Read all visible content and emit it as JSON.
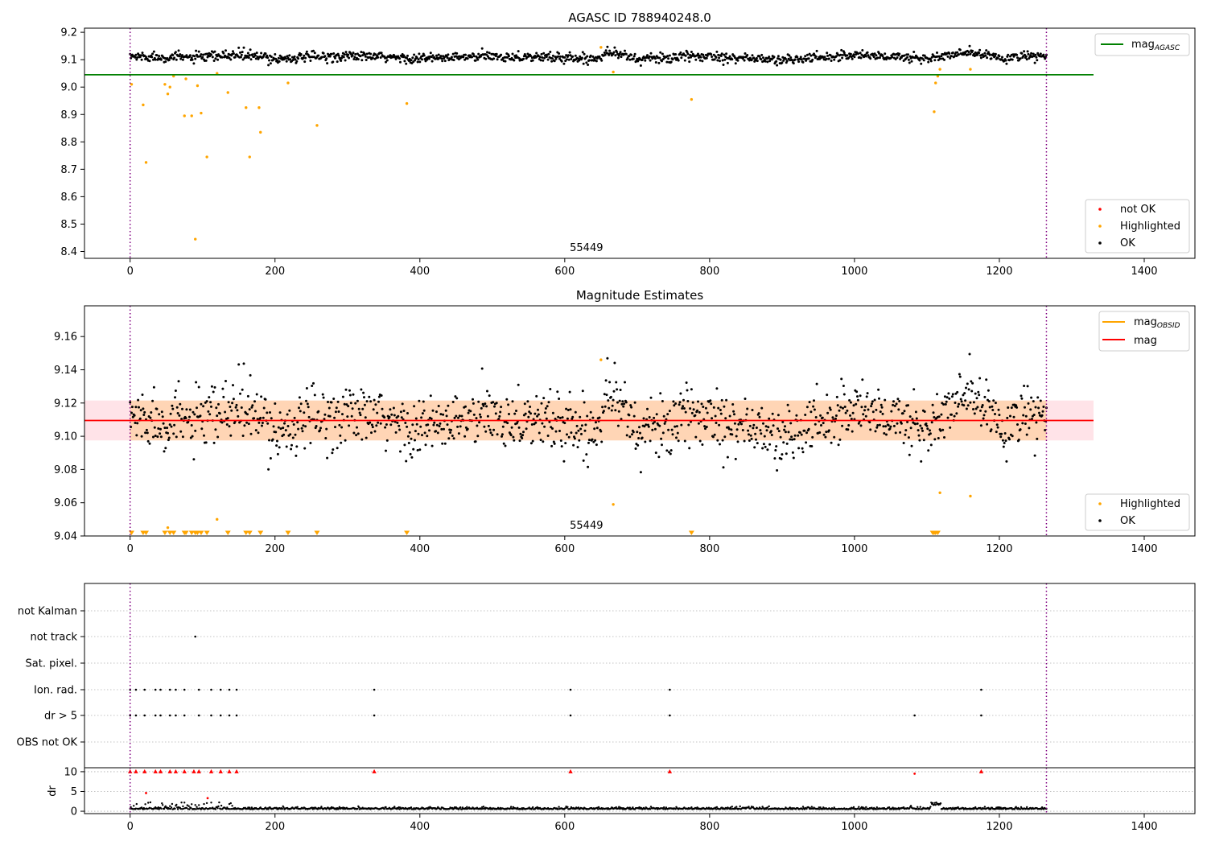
{
  "chart_data": [
    {
      "type": "scatter",
      "title": "AGASC ID 788940248.0",
      "x_range": [
        -63,
        1470
      ],
      "y_range": [
        8.375,
        9.215
      ],
      "x_ticks": [
        0,
        200,
        400,
        600,
        800,
        1000,
        1200,
        1400
      ],
      "y_ticks": [
        8.4,
        8.5,
        8.6,
        8.7,
        8.8,
        8.9,
        9.0,
        9.1,
        9.2
      ],
      "y_tick_labels": [
        "8.4",
        "8.5",
        "8.6",
        "8.7",
        "8.8",
        "8.9",
        "9.0",
        "9.1",
        "9.2"
      ],
      "obsid_label": "55449",
      "obsid_label_x": 630,
      "obs_boundaries": [
        0,
        1265
      ],
      "mag_agasc": 9.045,
      "mag_agasc_x_range": [
        -63,
        1330
      ],
      "legend_upper": [
        {
          "label": "mag",
          "sub": "AGASC",
          "color": "#008000"
        }
      ],
      "legend_lower": [
        {
          "label": "not OK",
          "color": "#ff0000"
        },
        {
          "label": "Highlighted",
          "color": "#ffa500"
        },
        {
          "label": "OK",
          "color": "#000000"
        }
      ],
      "ok_band": [
        {
          "x": 0,
          "y": 9.112
        },
        {
          "x": 100,
          "y": 9.108
        },
        {
          "x": 150,
          "y": 9.118
        },
        {
          "x": 200,
          "y": 9.104
        },
        {
          "x": 300,
          "y": 9.114
        },
        {
          "x": 400,
          "y": 9.104
        },
        {
          "x": 500,
          "y": 9.112
        },
        {
          "x": 600,
          "y": 9.108
        },
        {
          "x": 640,
          "y": 9.102
        },
        {
          "x": 660,
          "y": 9.132
        },
        {
          "x": 700,
          "y": 9.102
        },
        {
          "x": 800,
          "y": 9.114
        },
        {
          "x": 900,
          "y": 9.098
        },
        {
          "x": 1000,
          "y": 9.118
        },
        {
          "x": 1100,
          "y": 9.104
        },
        {
          "x": 1160,
          "y": 9.126
        },
        {
          "x": 1200,
          "y": 9.106
        },
        {
          "x": 1265,
          "y": 9.114
        }
      ],
      "highlighted": [
        {
          "x": 2,
          "y": 9.01
        },
        {
          "x": 18,
          "y": 8.935
        },
        {
          "x": 22,
          "y": 8.725
        },
        {
          "x": 48,
          "y": 9.01
        },
        {
          "x": 52,
          "y": 8.975
        },
        {
          "x": 55,
          "y": 9.0
        },
        {
          "x": 60,
          "y": 9.04
        },
        {
          "x": 75,
          "y": 8.895
        },
        {
          "x": 77,
          "y": 9.03
        },
        {
          "x": 85,
          "y": 8.895
        },
        {
          "x": 90,
          "y": 8.445
        },
        {
          "x": 93,
          "y": 9.005
        },
        {
          "x": 98,
          "y": 8.905
        },
        {
          "x": 106,
          "y": 8.745
        },
        {
          "x": 120,
          "y": 9.05
        },
        {
          "x": 135,
          "y": 8.98
        },
        {
          "x": 160,
          "y": 8.925
        },
        {
          "x": 165,
          "y": 8.745
        },
        {
          "x": 178,
          "y": 8.925
        },
        {
          "x": 180,
          "y": 8.835
        },
        {
          "x": 218,
          "y": 9.015
        },
        {
          "x": 258,
          "y": 8.86
        },
        {
          "x": 382,
          "y": 8.94
        },
        {
          "x": 650,
          "y": 9.145
        },
        {
          "x": 667,
          "y": 9.055
        },
        {
          "x": 775,
          "y": 8.955
        },
        {
          "x": 1110,
          "y": 8.91
        },
        {
          "x": 1112,
          "y": 9.015
        },
        {
          "x": 1115,
          "y": 9.04
        },
        {
          "x": 1118,
          "y": 9.065
        },
        {
          "x": 1160,
          "y": 9.065
        }
      ]
    },
    {
      "type": "scatter",
      "title": "Magnitude Estimates",
      "x_range": [
        -63,
        1470
      ],
      "y_range": [
        9.04,
        9.1785
      ],
      "x_ticks": [
        0,
        200,
        400,
        600,
        800,
        1000,
        1200,
        1400
      ],
      "y_ticks": [
        9.04,
        9.06,
        9.08,
        9.1,
        9.12,
        9.14,
        9.16
      ],
      "y_tick_labels": [
        "9.04",
        "9.06",
        "9.08",
        "9.10",
        "9.12",
        "9.14",
        "9.16"
      ],
      "obsid_label": "55449",
      "obsid_label_x": 630,
      "obs_boundaries": [
        0,
        1265
      ],
      "mag_mean": 9.1095,
      "mag_band": [
        9.0975,
        9.1215
      ],
      "mag_band_x_range": [
        -63,
        1330
      ],
      "mag_obsid_band_x_range": [
        0,
        1265
      ],
      "legend_upper": [
        {
          "label": "mag",
          "sub": "OBSID",
          "color": "#ffa500"
        },
        {
          "label": "mag",
          "color": "#ff0000"
        }
      ],
      "legend_lower": [
        {
          "label": "Highlighted",
          "color": "#ffa500"
        },
        {
          "label": "OK",
          "color": "#000000"
        }
      ],
      "highlighted_points": [
        {
          "x": 52,
          "y": 9.045
        },
        {
          "x": 120,
          "y": 9.05
        },
        {
          "x": 650,
          "y": 9.146
        },
        {
          "x": 667,
          "y": 9.059
        },
        {
          "x": 1118,
          "y": 9.066
        },
        {
          "x": 1160,
          "y": 9.064
        }
      ],
      "below_range_markers_x": [
        2,
        18,
        22,
        48,
        55,
        60,
        75,
        77,
        85,
        90,
        93,
        98,
        106,
        135,
        160,
        165,
        180,
        218,
        258,
        382,
        775,
        1108,
        1110,
        1112,
        1115
      ]
    },
    {
      "type": "scatter",
      "title": "",
      "x_range": [
        -63,
        1470
      ],
      "x_ticks": [
        0,
        200,
        400,
        600,
        800,
        1000,
        1200,
        1400
      ],
      "obs_boundaries": [
        0,
        1265
      ],
      "flag_rows": [
        "not Kalman",
        "not track",
        "Sat. pixel.",
        "Ion. rad.",
        "dr > 5",
        "OBS not OK"
      ],
      "flag_points": {
        "not track": [
          90
        ],
        "Ion. rad.": [
          0,
          8,
          20,
          35,
          42,
          55,
          63,
          75,
          95,
          112,
          125,
          137,
          147,
          337,
          608,
          745,
          1175
        ],
        "dr > 5": [
          0,
          8,
          20,
          35,
          42,
          55,
          63,
          75,
          95,
          112,
          125,
          137,
          147,
          337,
          608,
          745,
          1083,
          1175
        ]
      },
      "dr_ylabel": "dr",
      "dr_range": [
        -0.6,
        11
      ],
      "dr_ticks": [
        0,
        5,
        10
      ],
      "dr_tick_labels": [
        "0",
        "5",
        "10"
      ],
      "dr_clip": 10,
      "dr_high_x": [
        0,
        8,
        20,
        35,
        42,
        55,
        63,
        75,
        88,
        95,
        112,
        125,
        137,
        147,
        337,
        608,
        745,
        1175
      ],
      "dr_high_y": [
        10,
        10,
        10,
        10,
        10,
        10,
        10,
        10,
        10,
        10,
        10,
        10,
        10,
        10,
        10,
        10,
        10,
        10
      ],
      "dr_notok_points": [
        {
          "x": 1083,
          "y": 9.5
        },
        {
          "x": 22,
          "y": 4.6
        },
        {
          "x": 107,
          "y": 3.3
        }
      ]
    }
  ]
}
